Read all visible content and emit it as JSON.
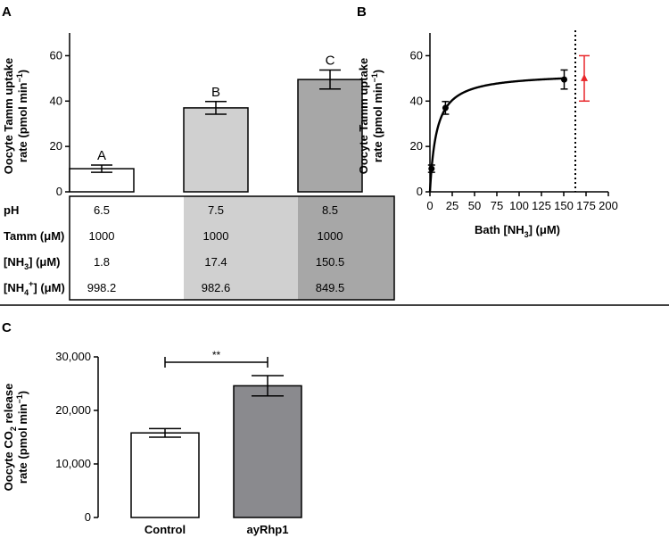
{
  "colors": {
    "white": "#ffffff",
    "light": "#d0d0d0",
    "mid": "#a7a7a7",
    "dark": "#8a8a8e",
    "red": "#e8262a",
    "axis": "#000000"
  },
  "chart_data": [
    {
      "panel": "A",
      "type": "bar",
      "ylabel_line1": "Oocyte Tamm uptake",
      "ylabel_line2_pre": "rate (pmol min",
      "ylabel_line2_sup": "−1",
      "ylabel_line2_post": ")",
      "ylim": [
        0,
        70
      ],
      "yticks": [
        "0",
        "20",
        "40",
        "60"
      ],
      "bars": [
        {
          "letter": "A",
          "value": 10.2,
          "error": 1.6,
          "fill": "#ffffff"
        },
        {
          "letter": "B",
          "value": 37.0,
          "error": 2.8,
          "fill": "#d0d0d0"
        },
        {
          "letter": "C",
          "value": 49.5,
          "error": 4.2,
          "fill": "#a7a7a7"
        }
      ],
      "table": {
        "rows": [
          {
            "label": "pH",
            "values": [
              "6.5",
              "7.5",
              "8.5"
            ]
          },
          {
            "label": "Tamm (μM)",
            "values": [
              "1000",
              "1000",
              "1000"
            ]
          },
          {
            "label_pre": "[NH",
            "label_sub": "3",
            "label_post": "] (μM)",
            "values": [
              "1.8",
              "17.4",
              "150.5"
            ]
          },
          {
            "label_pre": "[NH",
            "label_sub": "4",
            "label_sup": "+",
            "label_post": "] (μM)",
            "values": [
              "998.2",
              "982.6",
              "849.5"
            ]
          }
        ]
      }
    },
    {
      "panel": "B",
      "type": "scatter",
      "ylabel_line1": "Oocyte Tamm uptake",
      "ylabel_line2_pre": "rate (pmol min",
      "ylabel_line2_sup": "−1",
      "ylabel_line2_post": ")",
      "xlabel_pre": "Bath [NH",
      "xlabel_sub": "3",
      "xlabel_post": "] (μM)",
      "xlim": [
        0,
        200
      ],
      "ylim": [
        0,
        70
      ],
      "xticks": [
        "0",
        "25",
        "50",
        "75",
        "100",
        "125",
        "150",
        "175",
        "200"
      ],
      "yticks": [
        "0",
        "20",
        "40",
        "60"
      ],
      "points": [
        {
          "x": 1.8,
          "y": 10.2,
          "err": 1.6
        },
        {
          "x": 17.4,
          "y": 37.0,
          "err": 2.8
        },
        {
          "x": 150.5,
          "y": 49.5,
          "err": 4.2
        }
      ],
      "fit": {
        "vmax": 52.5,
        "km": 7.5
      },
      "vline_x": 163,
      "red_point": {
        "x": 173,
        "y": 50,
        "err": 10
      }
    },
    {
      "panel": "C",
      "type": "bar",
      "ylabel_line1_pre": "Oocyte CO",
      "ylabel_line1_sub": "2",
      "ylabel_line1_post": " release",
      "ylabel_line2_pre": "rate (pmol min",
      "ylabel_line2_sup": "−1",
      "ylabel_line2_post": ")",
      "ylim": [
        0,
        30000
      ],
      "yticks": [
        "0",
        "10,000",
        "20,000",
        "30,000"
      ],
      "categories": [
        "Control",
        "ayRhp1"
      ],
      "values": [
        15800,
        24600
      ],
      "errors": [
        800,
        1900
      ],
      "fills": [
        "#ffffff",
        "#8a8a8e"
      ],
      "significance": "**"
    }
  ],
  "panels": {
    "a": "A",
    "b": "B",
    "c": "C"
  }
}
